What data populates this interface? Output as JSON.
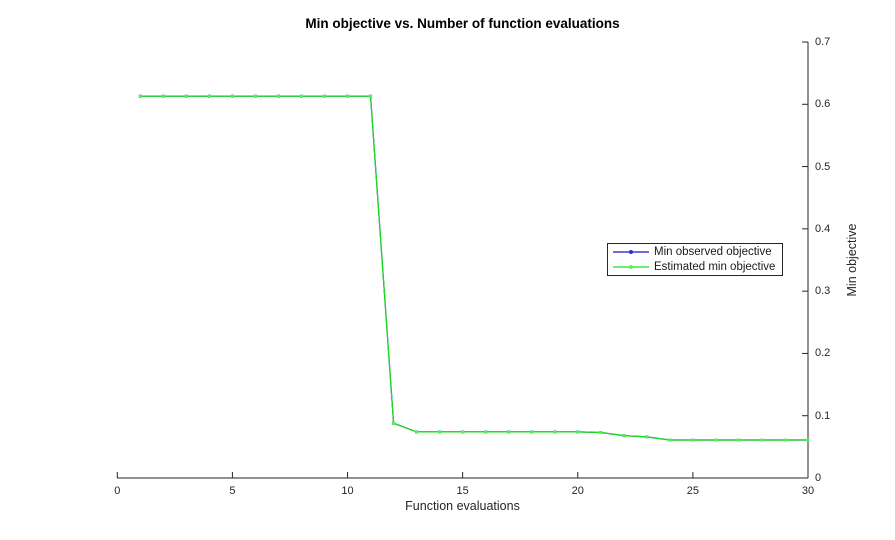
{
  "figure": {
    "title": "Min objective vs. Number of function evaluations",
    "xlabel": "Function evaluations",
    "ylabel": "Min objective",
    "background_color": "#ffffff",
    "axis_color": "#262626"
  },
  "legend": {
    "items": [
      {
        "label": "Min observed objective",
        "line_color": "#1414cc",
        "marker_color": "#2a2ae6"
      },
      {
        "label": "Estimated min objective",
        "line_color": "#17e217",
        "marker_color": "#55f555"
      }
    ]
  },
  "chart_data": {
    "type": "line",
    "title": "Min objective vs. Number of function evaluations",
    "xlabel": "Function evaluations",
    "ylabel": "Min objective",
    "xlim": [
      0,
      30
    ],
    "ylim": [
      0,
      0.7
    ],
    "xtick_values": [
      0,
      5,
      10,
      15,
      20,
      25,
      30
    ],
    "xtick_labels": [
      "0",
      "5",
      "10",
      "15",
      "20",
      "25",
      "30"
    ],
    "ytick_values": [
      0,
      0.1,
      0.2,
      0.3,
      0.4,
      0.5,
      0.6,
      0.7
    ],
    "ytick_labels": [
      "0",
      "0.1",
      "0.2",
      "0.3",
      "0.4",
      "0.5",
      "0.6",
      "0.7"
    ],
    "grid": false,
    "legend_position": "middle-right",
    "yaxis_side": "right",
    "x": [
      1,
      2,
      3,
      4,
      5,
      6,
      7,
      8,
      9,
      10,
      11,
      12,
      13,
      14,
      15,
      16,
      17,
      18,
      19,
      20,
      21,
      22,
      23,
      24,
      25,
      26,
      27,
      28,
      29,
      30
    ],
    "series": [
      {
        "name": "Min observed objective",
        "line_color": "#1414cc",
        "marker_color": "#2a2ae6",
        "values": [
          0.613,
          0.613,
          0.613,
          0.613,
          0.613,
          0.613,
          0.613,
          0.613,
          0.613,
          0.613,
          0.613,
          0.088,
          0.074,
          0.074,
          0.074,
          0.074,
          0.074,
          0.074,
          0.074,
          0.074,
          0.073,
          0.068,
          0.066,
          0.061,
          0.061,
          0.061,
          0.061,
          0.061,
          0.061,
          0.061
        ]
      },
      {
        "name": "Estimated min objective",
        "line_color": "#17e217",
        "marker_color": "#55f555",
        "values": [
          0.613,
          0.613,
          0.613,
          0.613,
          0.613,
          0.613,
          0.613,
          0.613,
          0.613,
          0.613,
          0.613,
          0.088,
          0.074,
          0.074,
          0.074,
          0.074,
          0.074,
          0.074,
          0.074,
          0.074,
          0.073,
          0.068,
          0.066,
          0.061,
          0.061,
          0.061,
          0.061,
          0.061,
          0.061,
          0.061
        ]
      }
    ]
  }
}
